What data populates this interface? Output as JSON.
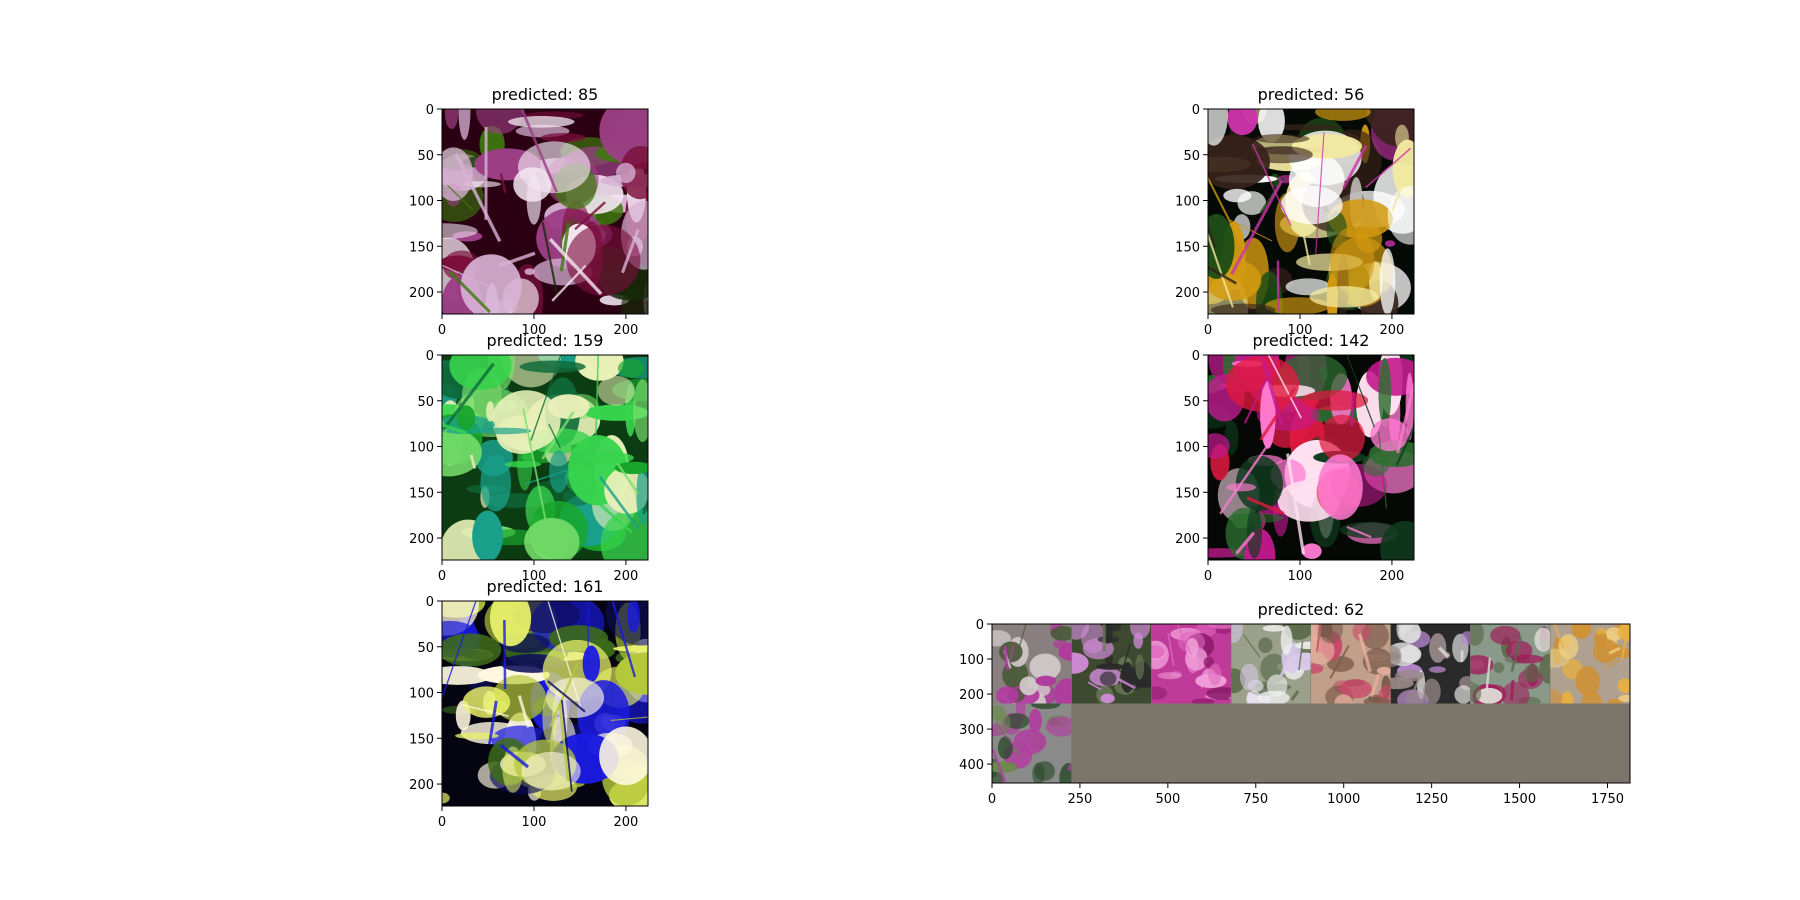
{
  "chart_data": [
    {
      "type": "image",
      "title": "predicted: 85",
      "xticks": [
        0,
        100,
        200
      ],
      "yticks": [
        0,
        50,
        100,
        150,
        200
      ],
      "xlim": [
        0,
        224
      ],
      "ylim": [
        224,
        0
      ],
      "colors": [
        "#2a0012",
        "#d9b3d6",
        "#7a0f3b",
        "#f4e6f2",
        "#152b08",
        "#3e7a0f",
        "#9d3f86"
      ]
    },
    {
      "type": "image",
      "title": "predicted: 56",
      "xticks": [
        0,
        100,
        200
      ],
      "yticks": [
        0,
        50,
        100,
        150,
        200
      ],
      "xlim": [
        0,
        224
      ],
      "ylim": [
        224,
        0
      ],
      "colors": [
        "#050a06",
        "#1e4d17",
        "#f2e9a0",
        "#d29a10",
        "#ffffff",
        "#37221a",
        "#cc33aa"
      ]
    },
    {
      "type": "image",
      "title": "predicted: 159",
      "xticks": [
        0,
        100,
        200
      ],
      "yticks": [
        0,
        50,
        100,
        150,
        200
      ],
      "xlim": [
        0,
        224
      ],
      "ylim": [
        224,
        0
      ],
      "colors": [
        "#0c3d12",
        "#19a52c",
        "#7ae06e",
        "#e8f0b8",
        "#0e6b3a",
        "#1aa08a",
        "#38d44d"
      ]
    },
    {
      "type": "image",
      "title": "predicted: 142",
      "xticks": [
        0,
        100,
        200
      ],
      "yticks": [
        0,
        50,
        100,
        150,
        200
      ],
      "xlim": [
        0,
        224
      ],
      "ylim": [
        224,
        0
      ],
      "colors": [
        "#050805",
        "#0f3a1d",
        "#c21a8e",
        "#ff7ad1",
        "#2c6e30",
        "#ffe0f0",
        "#e01a40"
      ]
    },
    {
      "type": "image",
      "title": "predicted: 161",
      "xticks": [
        0,
        100,
        200
      ],
      "yticks": [
        0,
        50,
        100,
        150,
        200
      ],
      "xlim": [
        0,
        224
      ],
      "ylim": [
        224,
        0
      ],
      "colors": [
        "#050512",
        "#1a1ae0",
        "#0d0d5a",
        "#e8f06a",
        "#b4c83a",
        "#fff8e0",
        "#3d6b1a"
      ]
    },
    {
      "type": "image_grid",
      "title": "predicted: 62",
      "xticks": [
        0,
        250,
        500,
        750,
        1000,
        1250,
        1500,
        1750
      ],
      "yticks": [
        0,
        100,
        200,
        300,
        400
      ],
      "xlim": [
        0,
        1814
      ],
      "ylim": [
        454,
        0
      ],
      "tiles": 9,
      "columns": 8,
      "padding_color": "#7c756a",
      "colors": [
        [
          "#8a7f80",
          "#b03a9e",
          "#4a5a3a",
          "#d0c8c8"
        ],
        [
          "#3e4a30",
          "#d08ad6",
          "#6a7a5a",
          "#2a2a2a"
        ],
        [
          "#c03a9a",
          "#e06ac0",
          "#8a1a6a",
          "#f0a0d8"
        ],
        [
          "#9aa08a",
          "#f0f0f0",
          "#d8c8e8",
          "#5a6a4a"
        ],
        [
          "#c0a08a",
          "#c84a6a",
          "#e8b0a0",
          "#7a5a4a"
        ],
        [
          "#2a2a2a",
          "#b88ad0",
          "#9a8a8a",
          "#e0e0e0"
        ],
        [
          "#8a9a8a",
          "#a01a5a",
          "#e0e0d8",
          "#5a6a4a"
        ],
        [
          "#b0a090",
          "#e8b040",
          "#d09030",
          "#f0d080"
        ],
        [
          "#8a8a8a",
          "#b040a0",
          "#2a4a2a",
          "#6a8a4a"
        ]
      ]
    }
  ]
}
